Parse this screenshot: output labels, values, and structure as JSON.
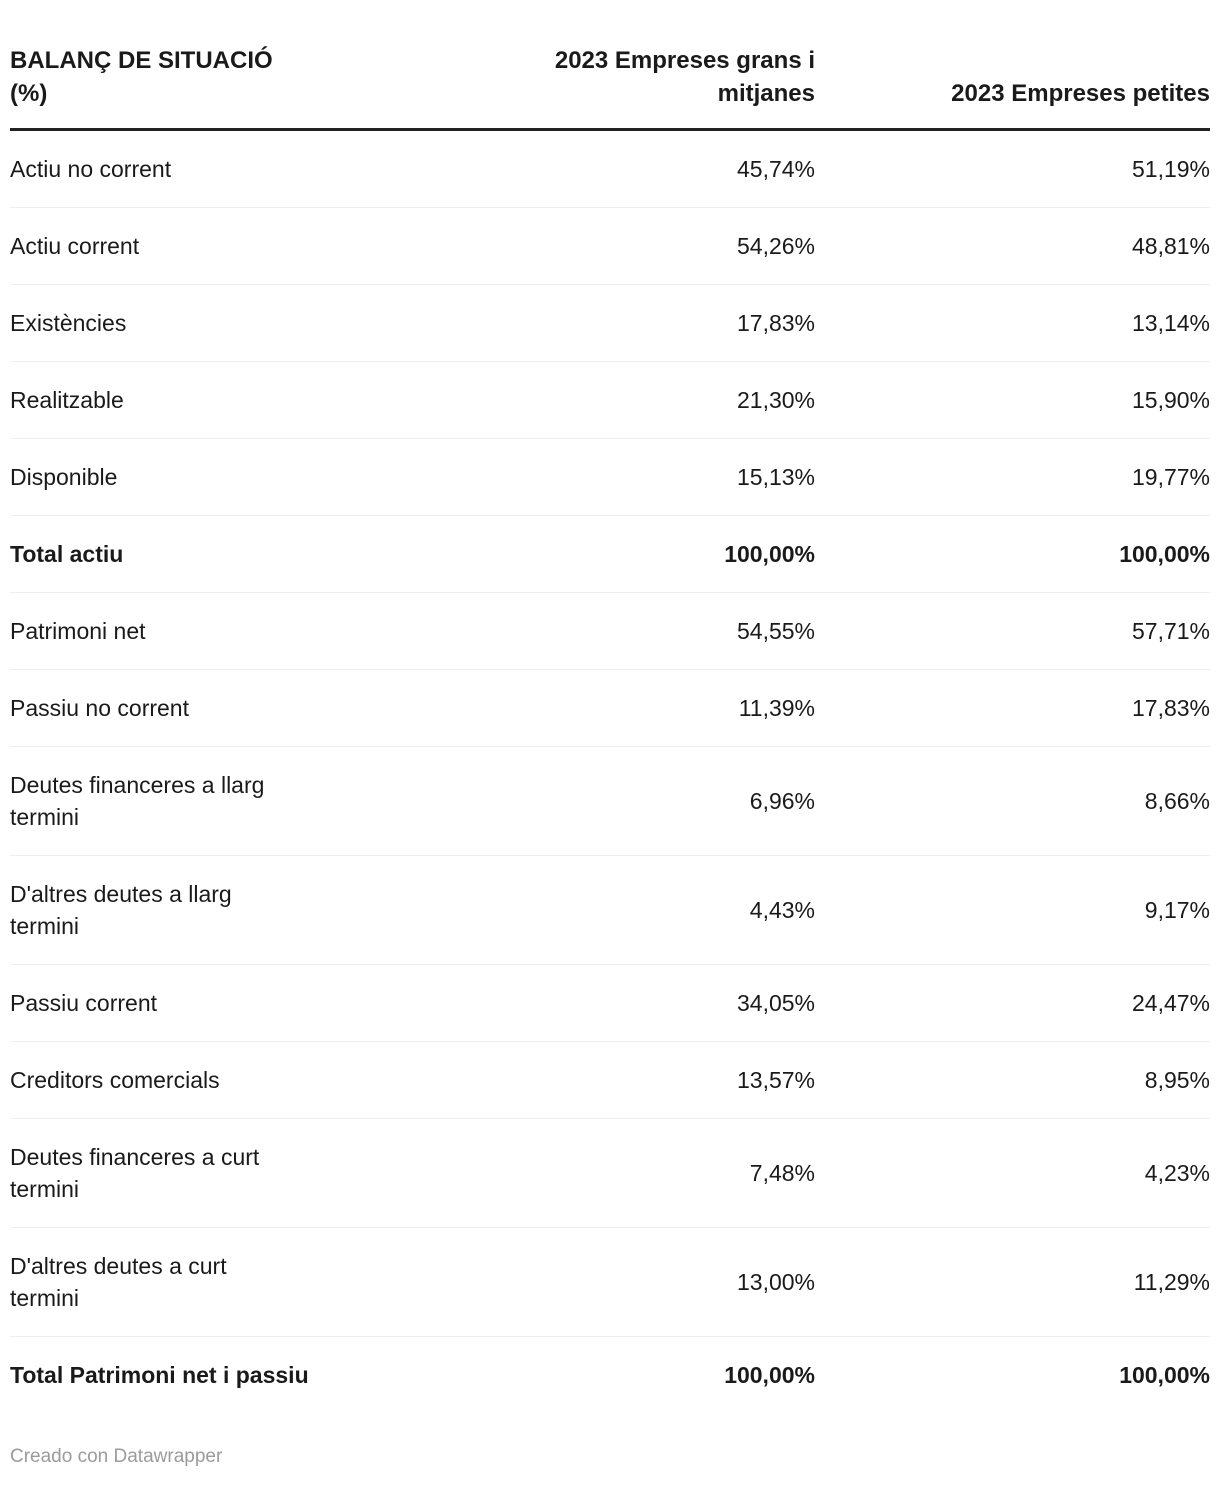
{
  "table": {
    "title": "BALANÇ DE SITUACIÓ\n(%)",
    "columns": [
      "2023 Empreses grans i\nmitjanes",
      "2023 Empreses petites"
    ],
    "rows": [
      {
        "label": "Actiu no corrent",
        "grans_mitjanes": "45,74%",
        "petites": "51,19%",
        "bold": false
      },
      {
        "label": "Actiu corrent",
        "grans_mitjanes": "54,26%",
        "petites": "48,81%",
        "bold": false
      },
      {
        "label": "Existències",
        "grans_mitjanes": "17,83%",
        "petites": "13,14%",
        "bold": false
      },
      {
        "label": "Realitzable",
        "grans_mitjanes": "21,30%",
        "petites": "15,90%",
        "bold": false
      },
      {
        "label": "Disponible",
        "grans_mitjanes": "15,13%",
        "petites": "19,77%",
        "bold": false
      },
      {
        "label": "Total actiu",
        "grans_mitjanes": "100,00%",
        "petites": "100,00%",
        "bold": true
      },
      {
        "label": "Patrimoni net",
        "grans_mitjanes": "54,55%",
        "petites": "57,71%",
        "bold": false
      },
      {
        "label": "Passiu no corrent",
        "grans_mitjanes": "11,39%",
        "petites": "17,83%",
        "bold": false
      },
      {
        "label": "Deutes financeres a llarg\ntermini",
        "grans_mitjanes": "6,96%",
        "petites": "8,66%",
        "bold": false
      },
      {
        "label": "D'altres deutes a llarg\ntermini",
        "grans_mitjanes": "4,43%",
        "petites": "9,17%",
        "bold": false
      },
      {
        "label": "Passiu corrent",
        "grans_mitjanes": "34,05%",
        "petites": "24,47%",
        "bold": false
      },
      {
        "label": "Creditors comercials",
        "grans_mitjanes": "13,57%",
        "petites": "8,95%",
        "bold": false
      },
      {
        "label": "Deutes financeres a curt\ntermini",
        "grans_mitjanes": "7,48%",
        "petites": "4,23%",
        "bold": false
      },
      {
        "label": "D'altres deutes a curt\ntermini",
        "grans_mitjanes": "13,00%",
        "petites": "11,29%",
        "bold": false
      },
      {
        "label": "Total Patrimoni net i passiu",
        "grans_mitjanes": "100,00%",
        "petites": "100,00%",
        "bold": true
      }
    ]
  },
  "footer": {
    "credit": "Creado con Datawrapper"
  },
  "colors": {
    "text": "#1a1a1a",
    "header_rule": "#222222",
    "row_divider": "#eeeeee",
    "credit_text": "#9b9b9b",
    "background": "#ffffff"
  },
  "chart_data": {
    "type": "table",
    "title": "BALANÇ DE SITUACIÓ (%)",
    "columns": [
      "BALANÇ DE SITUACIÓ (%)",
      "2023 Empreses grans i mitjanes",
      "2023 Empreses petites"
    ],
    "unit": "%",
    "rows": [
      {
        "label": "Actiu no corrent",
        "grans_mitjanes": 45.74,
        "petites": 51.19
      },
      {
        "label": "Actiu corrent",
        "grans_mitjanes": 54.26,
        "petites": 48.81
      },
      {
        "label": "Existències",
        "grans_mitjanes": 17.83,
        "petites": 13.14
      },
      {
        "label": "Realitzable",
        "grans_mitjanes": 21.3,
        "petites": 15.9
      },
      {
        "label": "Disponible",
        "grans_mitjanes": 15.13,
        "petites": 19.77
      },
      {
        "label": "Total actiu",
        "grans_mitjanes": 100.0,
        "petites": 100.0
      },
      {
        "label": "Patrimoni net",
        "grans_mitjanes": 54.55,
        "petites": 57.71
      },
      {
        "label": "Passiu no corrent",
        "grans_mitjanes": 11.39,
        "petites": 17.83
      },
      {
        "label": "Deutes financeres a llarg termini",
        "grans_mitjanes": 6.96,
        "petites": 8.66
      },
      {
        "label": "D'altres deutes a llarg termini",
        "grans_mitjanes": 4.43,
        "petites": 9.17
      },
      {
        "label": "Passiu corrent",
        "grans_mitjanes": 34.05,
        "petites": 24.47
      },
      {
        "label": "Creditors comercials",
        "grans_mitjanes": 13.57,
        "petites": 8.95
      },
      {
        "label": "Deutes financeres a curt termini",
        "grans_mitjanes": 7.48,
        "petites": 4.23
      },
      {
        "label": "D'altres deutes a curt termini",
        "grans_mitjanes": 13.0,
        "petites": 11.29
      },
      {
        "label": "Total Patrimoni net i passiu",
        "grans_mitjanes": 100.0,
        "petites": 100.0
      }
    ]
  }
}
